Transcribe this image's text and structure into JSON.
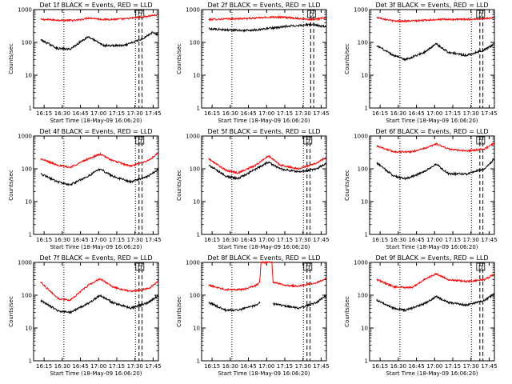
{
  "chart_data": {
    "type": "line",
    "layout": "3x3 grid",
    "xlabel": "Start Time (18-May-09 16:06:20)",
    "ylabel": "Counts/sec",
    "x_ticks": [
      "16:15",
      "16:30",
      "16:45",
      "17:00",
      "17:15",
      "17:30",
      "17:45"
    ],
    "y_ticks": [
      "1",
      "10",
      "100",
      "1000"
    ],
    "y_scale": "log",
    "ylim": [
      1,
      1000
    ],
    "xlim": [
      "16:06:20",
      "17:49:00"
    ],
    "marker_label": "D",
    "series_colors": {
      "events": "#000000",
      "lld": "#ff0000"
    },
    "panels": [
      {
        "title": "Det 1f BLACK = Events, RED = LLD",
        "events": [
          [
            6,
            120
          ],
          [
            20,
            65
          ],
          [
            30,
            62
          ],
          [
            45,
            150
          ],
          [
            58,
            80
          ],
          [
            75,
            80
          ],
          [
            90,
            130
          ],
          [
            98,
            200
          ],
          [
            103,
            170
          ]
        ],
        "lld": [
          [
            6,
            500
          ],
          [
            20,
            480
          ],
          [
            35,
            470
          ],
          [
            46,
            560
          ],
          [
            58,
            500
          ],
          [
            75,
            520
          ],
          [
            90,
            600
          ],
          [
            103,
            700
          ]
        ],
        "dotted": [
          25,
          84
        ],
        "dashed": [
          87,
          89.5
        ]
      },
      {
        "title": "Det 2f BLACK = Events, RED = LLD",
        "events": [
          [
            6,
            260
          ],
          [
            20,
            240
          ],
          [
            40,
            230
          ],
          [
            60,
            280
          ],
          [
            75,
            320
          ],
          [
            90,
            350
          ],
          [
            103,
            300
          ]
        ],
        "lld": [
          [
            6,
            500
          ],
          [
            20,
            520
          ],
          [
            40,
            540
          ],
          [
            60,
            600
          ],
          [
            75,
            560
          ],
          [
            90,
            500
          ],
          [
            103,
            560
          ]
        ],
        "dotted": [
          25,
          84
        ],
        "dashed": [
          90,
          92.5
        ]
      },
      {
        "title": "Det 3f BLACK = Events, RED = LLD",
        "events": [
          [
            6,
            80
          ],
          [
            20,
            40
          ],
          [
            30,
            30
          ],
          [
            45,
            50
          ],
          [
            55,
            90
          ],
          [
            65,
            50
          ],
          [
            80,
            40
          ],
          [
            95,
            60
          ],
          [
            103,
            90
          ]
        ],
        "lld": [
          [
            6,
            580
          ],
          [
            20,
            450
          ],
          [
            35,
            450
          ],
          [
            55,
            500
          ],
          [
            75,
            500
          ],
          [
            90,
            520
          ],
          [
            103,
            560
          ]
        ],
        "dotted": [
          25,
          84
        ],
        "dashed": [
          91,
          93.5
        ]
      },
      {
        "title": "Det 4f BLACK = Events, RED = LLD",
        "events": [
          [
            6,
            70
          ],
          [
            20,
            40
          ],
          [
            30,
            32
          ],
          [
            45,
            60
          ],
          [
            55,
            100
          ],
          [
            65,
            60
          ],
          [
            80,
            40
          ],
          [
            95,
            60
          ],
          [
            103,
            100
          ]
        ],
        "lld": [
          [
            6,
            200
          ],
          [
            20,
            130
          ],
          [
            30,
            110
          ],
          [
            45,
            200
          ],
          [
            55,
            280
          ],
          [
            65,
            180
          ],
          [
            80,
            120
          ],
          [
            95,
            180
          ],
          [
            103,
            300
          ]
        ],
        "dotted": [
          25,
          84
        ],
        "dashed": [
          87,
          89.5
        ]
      },
      {
        "title": "Det 5f BLACK = Events, RED = LLD",
        "events": [
          [
            6,
            130
          ],
          [
            20,
            60
          ],
          [
            30,
            50
          ],
          [
            45,
            100
          ],
          [
            55,
            160
          ],
          [
            65,
            100
          ],
          [
            80,
            80
          ],
          [
            95,
            100
          ],
          [
            103,
            150
          ]
        ],
        "lld": [
          [
            6,
            200
          ],
          [
            20,
            90
          ],
          [
            30,
            75
          ],
          [
            45,
            130
          ],
          [
            55,
            250
          ],
          [
            65,
            130
          ],
          [
            80,
            100
          ],
          [
            95,
            150
          ],
          [
            103,
            230
          ]
        ],
        "dotted": [
          25,
          84
        ],
        "dashed": [
          87,
          89.5
        ]
      },
      {
        "title": "Det 6f BLACK = Events, RED = LLD",
        "events": [
          [
            6,
            150
          ],
          [
            20,
            60
          ],
          [
            30,
            50
          ],
          [
            45,
            80
          ],
          [
            55,
            140
          ],
          [
            65,
            70
          ],
          [
            80,
            70
          ],
          [
            95,
            100
          ],
          [
            103,
            200
          ]
        ],
        "lld": [
          [
            6,
            500
          ],
          [
            20,
            330
          ],
          [
            35,
            330
          ],
          [
            48,
            450
          ],
          [
            55,
            580
          ],
          [
            65,
            400
          ],
          [
            80,
            350
          ],
          [
            95,
            400
          ],
          [
            103,
            620
          ]
        ],
        "dotted": [
          25,
          84
        ],
        "dashed": [
          91,
          93.5
        ]
      },
      {
        "title": "Det 7f BLACK = Events, RED = LLD",
        "events": [
          [
            6,
            70
          ],
          [
            20,
            33
          ],
          [
            30,
            30
          ],
          [
            45,
            55
          ],
          [
            55,
            100
          ],
          [
            65,
            60
          ],
          [
            80,
            40
          ],
          [
            95,
            60
          ],
          [
            103,
            100
          ]
        ],
        "lld": [
          [
            6,
            250
          ],
          [
            20,
            80
          ],
          [
            30,
            70
          ],
          [
            45,
            200
          ],
          [
            55,
            320
          ],
          [
            65,
            180
          ],
          [
            80,
            130
          ],
          [
            95,
            160
          ],
          [
            103,
            270
          ]
        ],
        "dotted": [
          25,
          84
        ],
        "dashed": [
          87,
          89.5
        ]
      },
      {
        "title": "Det 8f BLACK = Events, RED = LLD",
        "events": [
          [
            6,
            60
          ],
          [
            20,
            35
          ],
          [
            30,
            35
          ],
          [
            45,
            50
          ],
          [
            48,
            60
          ],
          [
            51,
            60
          ],
          [
            65,
            50
          ],
          [
            80,
            40
          ],
          [
            95,
            60
          ],
          [
            103,
            100
          ]
        ],
        "lld": [
          [
            6,
            200
          ],
          [
            20,
            150
          ],
          [
            35,
            150
          ],
          [
            45,
            200
          ],
          [
            48,
            250
          ],
          [
            49,
            1000
          ],
          [
            58,
            1000
          ],
          [
            59,
            250
          ],
          [
            70,
            200
          ],
          [
            80,
            190
          ],
          [
            95,
            240
          ],
          [
            103,
            330
          ]
        ],
        "dotted": [
          25,
          84
        ],
        "dashed": [
          87,
          89.5
        ]
      },
      {
        "title": "Det 9f BLACK = Events, RED = LLD",
        "events": [
          [
            6,
            70
          ],
          [
            20,
            40
          ],
          [
            30,
            35
          ],
          [
            45,
            55
          ],
          [
            55,
            90
          ],
          [
            65,
            60
          ],
          [
            80,
            50
          ],
          [
            95,
            70
          ],
          [
            103,
            110
          ]
        ],
        "lld": [
          [
            6,
            300
          ],
          [
            20,
            180
          ],
          [
            35,
            170
          ],
          [
            45,
            300
          ],
          [
            55,
            450
          ],
          [
            65,
            300
          ],
          [
            80,
            260
          ],
          [
            95,
            300
          ],
          [
            103,
            440
          ]
        ],
        "dotted": [
          25,
          84
        ],
        "dashed": [
          91,
          93.5
        ]
      }
    ]
  }
}
